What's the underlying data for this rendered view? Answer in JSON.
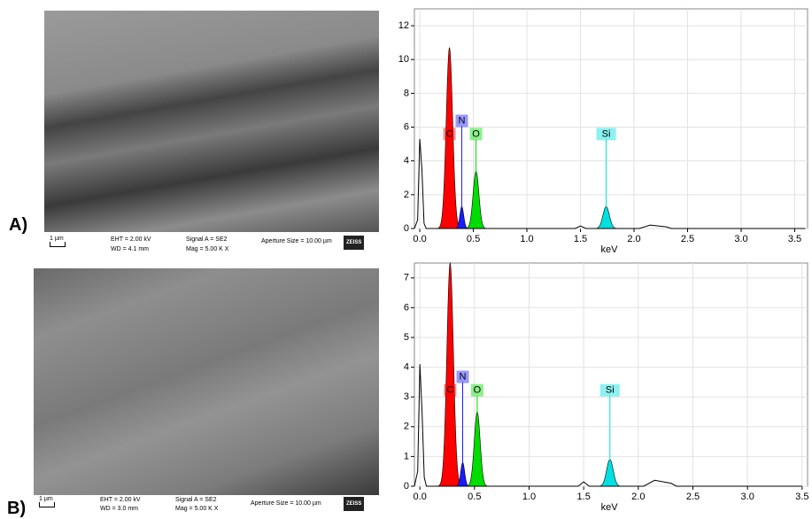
{
  "panels": [
    {
      "label": "A)",
      "sem": {
        "scale": "1 µm",
        "eht": "EHT = 2.00 kV",
        "wd": "WD = 4.1 mm",
        "signal": "Signal A = SE2",
        "mag": "Mag =  5.00 K X",
        "aperture": "Aperture Size = 10.00 µm",
        "logo": "ZEISS"
      }
    },
    {
      "label": "B)",
      "sem": {
        "scale": "1 µm",
        "eht": "EHT = 2.00 kV",
        "wd": "WD = 3.0 mm",
        "signal": "Signal A = SE2",
        "mag": "Mag =  5.00 K X",
        "aperture": "Aperture Size = 10.00 µm",
        "logo": "ZEISS"
      }
    }
  ],
  "chart_data": [
    {
      "type": "spectrum",
      "xlabel": "keV",
      "xlim": [
        -0.05,
        3.62
      ],
      "ylim": [
        0,
        13
      ],
      "xticks": [
        {
          "value": 0,
          "label": "0.0"
        },
        0.5,
        {
          "value": 1,
          "label": "1.0"
        },
        1.5,
        {
          "value": 2,
          "label": "2.0"
        },
        2.5,
        {
          "value": 3,
          "label": "3.0"
        },
        3.5
      ],
      "yticks": [
        0,
        2,
        4,
        6,
        8,
        10,
        12
      ],
      "grid": true,
      "series": [
        {
          "name": "C",
          "color": "#ff0000",
          "x": 0.277,
          "width": 0.03,
          "values": 10.7
        },
        {
          "name": "N",
          "color": "#1a1aff",
          "x": 0.392,
          "width": 0.018,
          "values": 1.3
        },
        {
          "name": "O",
          "color": "#00dd00",
          "x": 0.525,
          "width": 0.027,
          "values": 3.4
        },
        {
          "name": "Si",
          "color": "#00e0e0",
          "x": 1.74,
          "width": 0.03,
          "values": 1.3
        },
        {
          "color": "#000000",
          "x": [
            -0.05,
            -0.02,
            0,
            0.02,
            0.04,
            0.06,
            1.45,
            1.5,
            1.55,
            2.05,
            2.15,
            2.3,
            2.35,
            3.6
          ],
          "values": [
            0,
            0.5,
            5.3,
            3.5,
            0.3,
            0,
            0,
            0.15,
            0,
            0,
            0.2,
            0.1,
            0,
            0
          ]
        }
      ]
    },
    {
      "type": "spectrum",
      "xlabel": "keV",
      "xlim": [
        -0.05,
        3.55
      ],
      "ylim": [
        0,
        7.5
      ],
      "xticks": [
        {
          "value": 0,
          "label": "0.0"
        },
        0.5,
        {
          "value": 1,
          "label": "1.0"
        },
        1.5,
        {
          "value": 2,
          "label": "2.0"
        },
        2.5,
        {
          "value": 3,
          "label": "3.0"
        },
        3.5
      ],
      "yticks": [
        0,
        1,
        2,
        3,
        4,
        5,
        6,
        7
      ],
      "grid": true,
      "series": [
        {
          "name": "C",
          "color": "#ff0000",
          "x": 0.277,
          "width": 0.03,
          "values": 7.5
        },
        {
          "name": "N",
          "color": "#1a1aff",
          "x": 0.392,
          "width": 0.018,
          "values": 0.8
        },
        {
          "name": "O",
          "color": "#00dd00",
          "x": 0.525,
          "width": 0.027,
          "values": 2.5
        },
        {
          "name": "Si",
          "color": "#00e0e0",
          "x": 1.74,
          "width": 0.03,
          "values": 0.9
        },
        {
          "color": "#000000",
          "x": [
            -0.05,
            -0.02,
            0,
            0.02,
            0.04,
            0.06,
            1.45,
            1.5,
            1.55,
            2.05,
            2.15,
            2.3,
            2.35,
            3.5
          ],
          "values": [
            0,
            0.5,
            4.1,
            2.5,
            0.3,
            0,
            0,
            0.15,
            0,
            0,
            0.2,
            0.1,
            0,
            0
          ]
        }
      ]
    }
  ]
}
